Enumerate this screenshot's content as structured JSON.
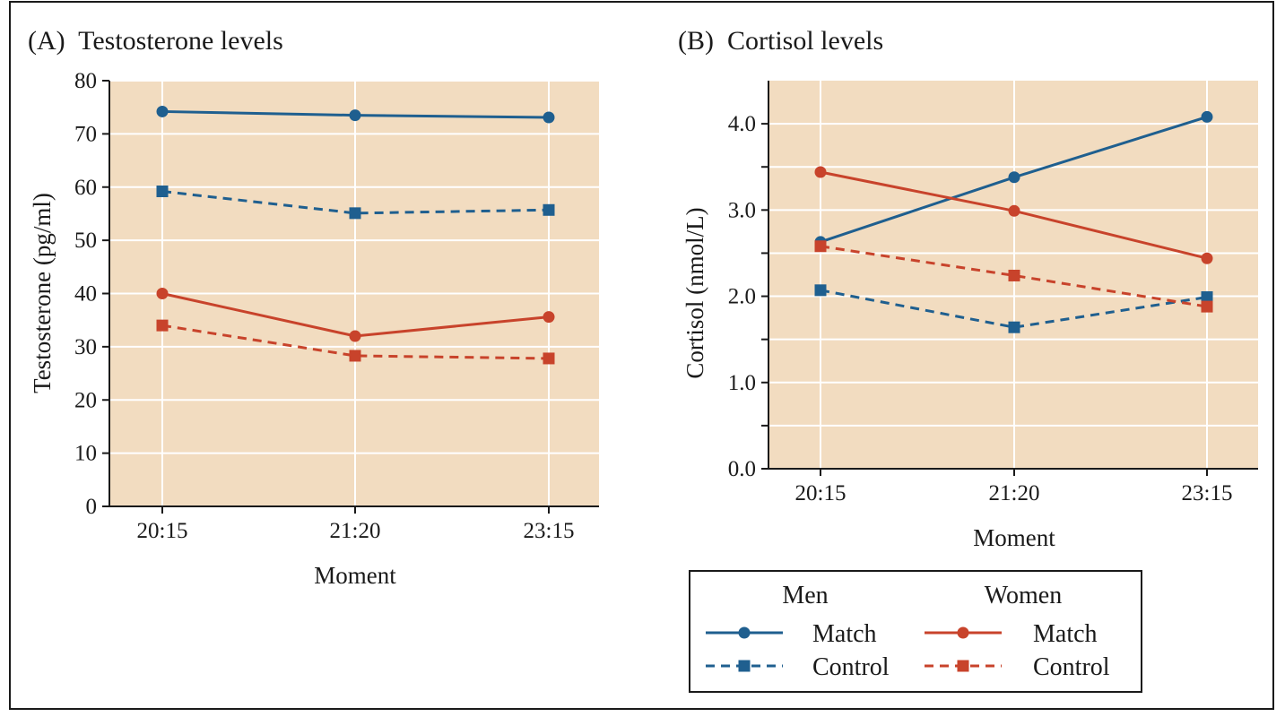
{
  "figure": {
    "legend": {
      "men_header": "Men",
      "women_header": "Women",
      "entries": [
        {
          "series": "men_match",
          "label": "Match"
        },
        {
          "series": "men_control",
          "label": "Control"
        },
        {
          "series": "women_match",
          "label": "Match"
        },
        {
          "series": "women_control",
          "label": "Control"
        }
      ]
    }
  },
  "series_styles": {
    "men_match": {
      "color": "#1f5f8f",
      "dash": false,
      "marker": "circle"
    },
    "men_control": {
      "color": "#1f5f8f",
      "dash": true,
      "marker": "square"
    },
    "women_match": {
      "color": "#c8432b",
      "dash": false,
      "marker": "circle"
    },
    "women_control": {
      "color": "#c8432b",
      "dash": true,
      "marker": "square"
    }
  },
  "colors": {
    "plot_background": "#f2dcc0",
    "gridline": "#ffffff",
    "axis": "#1a1a1a",
    "frame": "#1a1a1a"
  },
  "chart_data": [
    {
      "id": "A",
      "type": "line",
      "title": "(A)  Testosterone levels",
      "xlabel": "Moment",
      "ylabel": "Testosterone (pg/ml)",
      "categories": [
        "20:15",
        "21:20",
        "23:15"
      ],
      "ylim": [
        0,
        80
      ],
      "yticks": [
        0,
        10,
        20,
        30,
        40,
        50,
        60,
        70,
        80
      ],
      "ytick_labels": [
        "0",
        "10",
        "20",
        "30",
        "40",
        "50",
        "60",
        "70",
        "80"
      ],
      "ygrid": [
        10,
        20,
        30,
        40,
        50,
        60,
        70,
        80
      ],
      "series": [
        {
          "key": "men_match",
          "name": "Men Match",
          "values": [
            74.2,
            73.5,
            73.1
          ]
        },
        {
          "key": "men_control",
          "name": "Men Control",
          "values": [
            59.2,
            55.1,
            55.7
          ]
        },
        {
          "key": "women_match",
          "name": "Women Match",
          "values": [
            40.0,
            32.0,
            35.6
          ]
        },
        {
          "key": "women_control",
          "name": "Women Control",
          "values": [
            34.0,
            28.3,
            27.8
          ]
        }
      ]
    },
    {
      "id": "B",
      "type": "line",
      "title": "(B)  Cortisol levels",
      "xlabel": "Moment",
      "ylabel": "Cortisol (nmol/L)",
      "categories": [
        "20:15",
        "21:20",
        "23:15"
      ],
      "ylim": [
        0,
        4.5
      ],
      "yticks": [
        0,
        0.5,
        1.0,
        1.5,
        2.0,
        2.5,
        3.0,
        3.5,
        4.0
      ],
      "ytick_labels": [
        "0.0",
        "",
        "1.0",
        "",
        "2.0",
        "",
        "3.0",
        "",
        "4.0"
      ],
      "ygrid": [
        0.5,
        1.0,
        1.5,
        2.0,
        2.5,
        3.0,
        3.5,
        4.0
      ],
      "series": [
        {
          "key": "men_match",
          "name": "Men Match",
          "values": [
            2.63,
            3.38,
            4.08
          ]
        },
        {
          "key": "men_control",
          "name": "Men Control",
          "values": [
            2.07,
            1.64,
            1.99
          ]
        },
        {
          "key": "women_match",
          "name": "Women Match",
          "values": [
            3.44,
            2.99,
            2.44
          ]
        },
        {
          "key": "women_control",
          "name": "Women Control",
          "values": [
            2.58,
            2.24,
            1.88
          ]
        }
      ]
    }
  ]
}
